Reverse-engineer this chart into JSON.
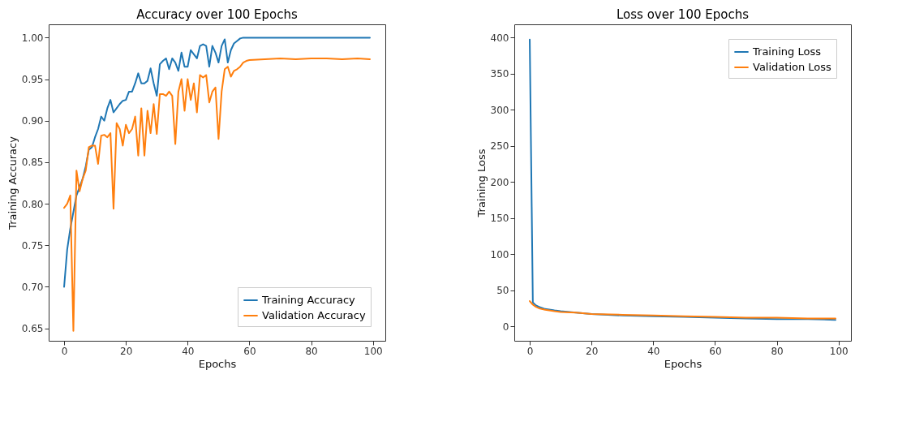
{
  "chart_data": [
    {
      "type": "line",
      "title": "Accuracy over 100 Epochs",
      "xlabel": "Epochs",
      "ylabel": "Training Accuracy",
      "legend": "bottom right",
      "grid": false,
      "xlim": [
        -5,
        104
      ],
      "xticks": [
        0,
        20,
        40,
        60,
        80,
        100
      ],
      "ylim": [
        0.635,
        1.016
      ],
      "yticks": [
        {
          "value": 0.65,
          "label": "0.65"
        },
        {
          "value": 0.7,
          "label": "0.70"
        },
        {
          "value": 0.75,
          "label": "0.75"
        },
        {
          "value": 0.8,
          "label": "0.80"
        },
        {
          "value": 0.85,
          "label": "0.85"
        },
        {
          "value": 0.9,
          "label": "0.90"
        },
        {
          "value": 0.95,
          "label": "0.95"
        },
        {
          "value": 1.0,
          "label": "1.00"
        }
      ],
      "x": [
        0,
        1,
        2,
        3,
        4,
        5,
        6,
        7,
        8,
        9,
        10,
        11,
        12,
        13,
        14,
        15,
        16,
        17,
        18,
        19,
        20,
        21,
        22,
        23,
        24,
        25,
        26,
        27,
        28,
        29,
        30,
        31,
        32,
        33,
        34,
        35,
        36,
        37,
        38,
        39,
        40,
        41,
        42,
        43,
        44,
        45,
        46,
        47,
        48,
        49,
        50,
        51,
        52,
        53,
        54,
        55,
        56,
        57,
        58,
        59,
        60,
        65,
        70,
        75,
        80,
        85,
        90,
        95,
        99
      ],
      "series": [
        {
          "name": "Training Accuracy",
          "color": "#1f77b4",
          "values": [
            0.7,
            0.745,
            0.77,
            0.79,
            0.81,
            0.82,
            0.83,
            0.845,
            0.865,
            0.868,
            0.88,
            0.89,
            0.905,
            0.9,
            0.915,
            0.925,
            0.91,
            0.915,
            0.92,
            0.924,
            0.925,
            0.935,
            0.935,
            0.945,
            0.957,
            0.945,
            0.945,
            0.948,
            0.963,
            0.945,
            0.93,
            0.968,
            0.972,
            0.975,
            0.962,
            0.975,
            0.97,
            0.96,
            0.982,
            0.965,
            0.965,
            0.985,
            0.98,
            0.975,
            0.99,
            0.992,
            0.99,
            0.965,
            0.99,
            0.982,
            0.97,
            0.99,
            0.998,
            0.97,
            0.985,
            0.993,
            0.996,
            0.999,
            1.0,
            1.0,
            1.0,
            1.0,
            1.0,
            1.0,
            1.0,
            1.0,
            1.0,
            1.0,
            1.0
          ]
        },
        {
          "name": "Validation Accuracy",
          "color": "#ff7f0e",
          "values": [
            0.795,
            0.8,
            0.81,
            0.647,
            0.84,
            0.815,
            0.83,
            0.84,
            0.868,
            0.87,
            0.87,
            0.848,
            0.882,
            0.883,
            0.88,
            0.885,
            0.794,
            0.897,
            0.89,
            0.87,
            0.895,
            0.885,
            0.89,
            0.905,
            0.858,
            0.915,
            0.858,
            0.912,
            0.885,
            0.92,
            0.884,
            0.932,
            0.932,
            0.93,
            0.935,
            0.93,
            0.872,
            0.935,
            0.95,
            0.912,
            0.95,
            0.925,
            0.945,
            0.91,
            0.955,
            0.952,
            0.955,
            0.922,
            0.935,
            0.94,
            0.878,
            0.935,
            0.962,
            0.965,
            0.953,
            0.96,
            0.962,
            0.965,
            0.97,
            0.972,
            0.973,
            0.974,
            0.975,
            0.974,
            0.975,
            0.975,
            0.974,
            0.975,
            0.974
          ]
        }
      ]
    },
    {
      "type": "line",
      "title": "Loss over 100 Epochs",
      "xlabel": "Epochs",
      "ylabel": "Training Loss",
      "legend": "top right",
      "grid": false,
      "xlim": [
        -5,
        104
      ],
      "xticks": [
        0,
        20,
        40,
        60,
        80,
        100
      ],
      "ylim": [
        -20,
        418
      ],
      "yticks": [
        0,
        50,
        100,
        150,
        200,
        250,
        300,
        350,
        400
      ],
      "x": [
        0,
        1,
        2,
        3,
        5,
        8,
        10,
        15,
        20,
        30,
        40,
        50,
        60,
        70,
        80,
        90,
        99
      ],
      "series": [
        {
          "name": "Training Loss",
          "color": "#1f77b4",
          "values": [
            397,
            33,
            29,
            27,
            24,
            22,
            21,
            19,
            17,
            15,
            14,
            13,
            12,
            11,
            10,
            10,
            9
          ]
        },
        {
          "name": "Validation Loss",
          "color": "#ff7f0e",
          "values": [
            35,
            30,
            27,
            25,
            23,
            21,
            20,
            19,
            17,
            16,
            15,
            14,
            13,
            12,
            12,
            11,
            11
          ]
        }
      ]
    }
  ]
}
